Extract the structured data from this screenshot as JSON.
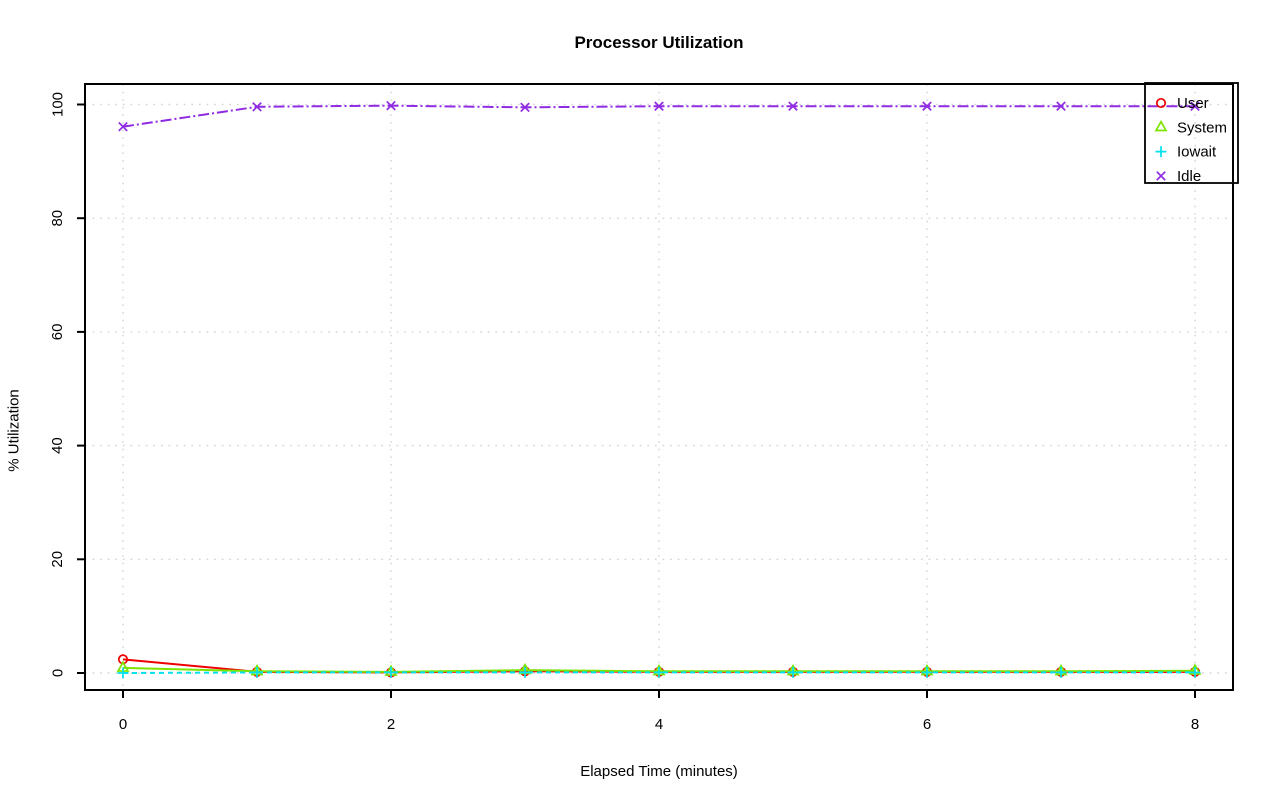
{
  "page": {
    "background_color": "#ffffff",
    "axis_color": "#000000",
    "grid_color": "#d3d3d3"
  },
  "chart_data": {
    "type": "line",
    "title": "Processor Utilization",
    "xlabel": "Elapsed Time (minutes)",
    "ylabel": "% Utilization",
    "x": [
      0,
      1,
      2,
      3,
      4,
      5,
      6,
      7,
      8
    ],
    "xlim": [
      0,
      8
    ],
    "ylim": [
      0,
      100
    ],
    "x_ticks": [
      0,
      2,
      4,
      6,
      8
    ],
    "y_ticks": [
      0,
      20,
      40,
      60,
      80,
      100
    ],
    "grid": "dotted light-gray lines at axis ticks, vertical at even minutes, horizontal every 20%",
    "legend_position": "top-right",
    "legend_border": "#000000",
    "series": [
      {
        "name": "User",
        "color": "#ee0000",
        "marker": "circle",
        "line": "solid",
        "values": [
          2.4,
          0.2,
          0.1,
          0.3,
          0.2,
          0.2,
          0.2,
          0.2,
          0.2
        ]
      },
      {
        "name": "System",
        "color": "#7ce400",
        "marker": "triangle",
        "line": "solid",
        "values": [
          0.9,
          0.3,
          0.2,
          0.5,
          0.3,
          0.3,
          0.3,
          0.3,
          0.4
        ]
      },
      {
        "name": "Iowait",
        "color": "#00e0ee",
        "marker": "plus",
        "line": "dashed",
        "values": [
          0.0,
          0.1,
          0.1,
          0.1,
          0.1,
          0.1,
          0.1,
          0.1,
          0.1
        ]
      },
      {
        "name": "Idle",
        "color": "#8f2be2",
        "marker": "x",
        "line": "dotdash",
        "values": [
          96.1,
          99.6,
          99.8,
          99.5,
          99.7,
          99.7,
          99.7,
          99.7,
          99.7
        ]
      }
    ]
  }
}
